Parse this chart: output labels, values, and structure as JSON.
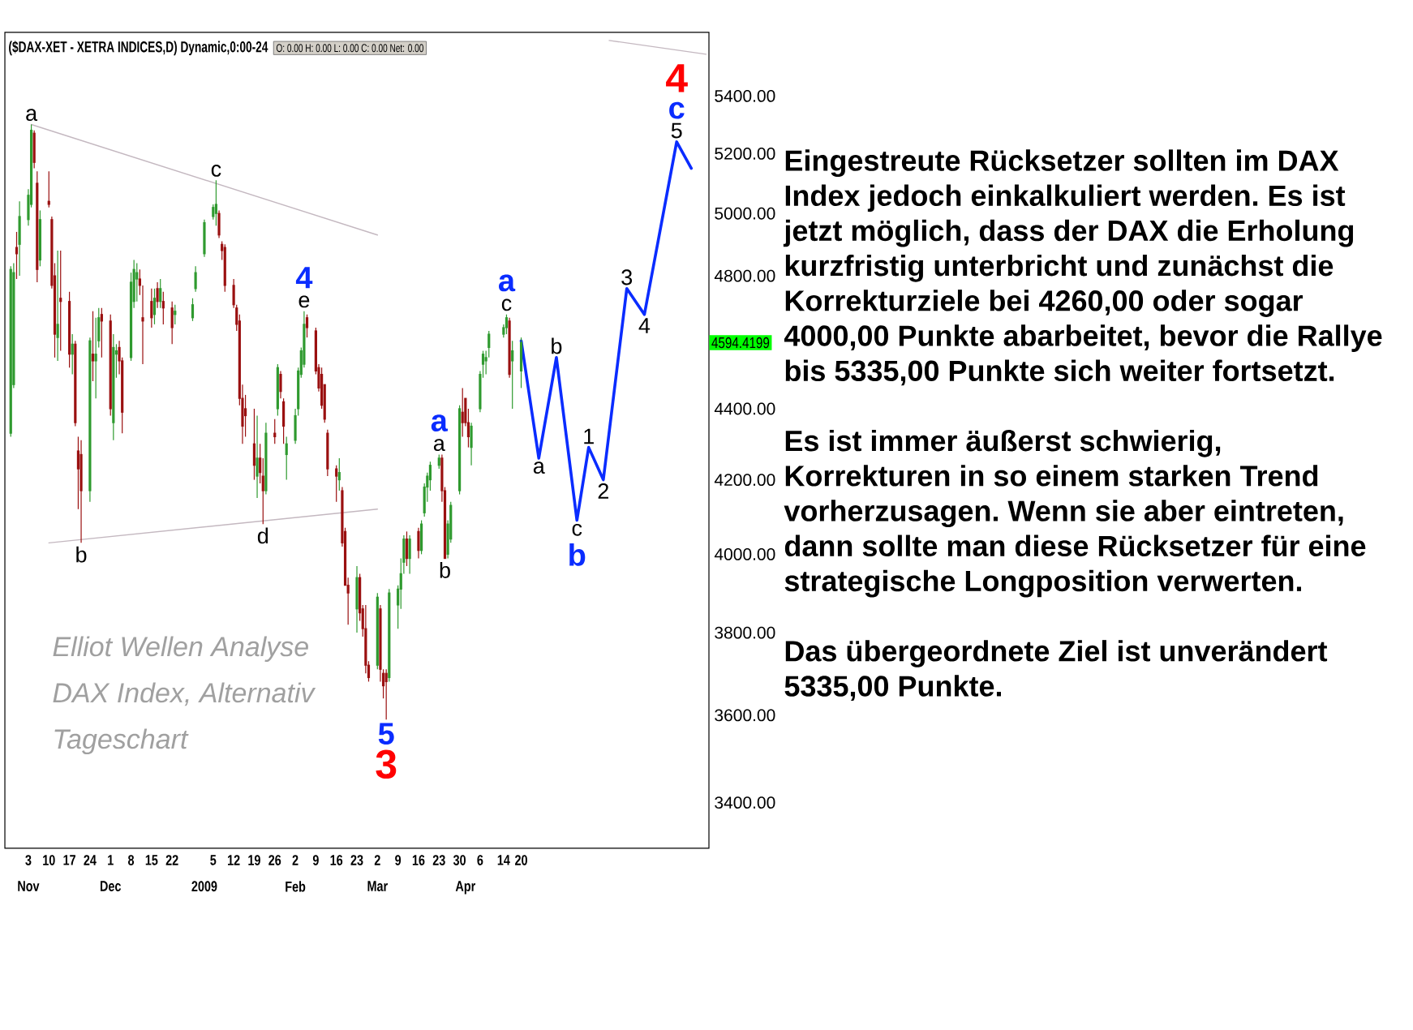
{
  "chart_data": {
    "type": "candlestick",
    "title": "($DAX-XET - XETRA INDICES,D) Dynamic,0:00-24",
    "subtitle": "O: 0.00 H: 0.00 L: 0.00 C: 0.00 Net: 0.00",
    "x": [
      "2008-10-28",
      "2008-10-29",
      "2008-10-30",
      "2008-10-31",
      "2008-11-03",
      "2008-11-04",
      "2008-11-05",
      "2008-11-06",
      "2008-11-07",
      "2008-11-10",
      "2008-11-11",
      "2008-11-12",
      "2008-11-13",
      "2008-11-14",
      "2008-11-17",
      "2008-11-18",
      "2008-11-19",
      "2008-11-20",
      "2008-11-21",
      "2008-11-24",
      "2008-11-25",
      "2008-11-26",
      "2008-11-27",
      "2008-11-28",
      "2008-12-01",
      "2008-12-02",
      "2008-12-03",
      "2008-12-04",
      "2008-12-05",
      "2008-12-08",
      "2008-12-09",
      "2008-12-10",
      "2008-12-11",
      "2008-12-12",
      "2008-12-15",
      "2008-12-16",
      "2008-12-17",
      "2008-12-18",
      "2008-12-19",
      "2008-12-22",
      "2008-12-23",
      "2008-12-29",
      "2008-12-30",
      "2009-01-02",
      "2009-01-05",
      "2009-01-06",
      "2009-01-07",
      "2009-01-08",
      "2009-01-09",
      "2009-01-12",
      "2009-01-13",
      "2009-01-14",
      "2009-01-15",
      "2009-01-16",
      "2009-01-19",
      "2009-01-20",
      "2009-01-21",
      "2009-01-22",
      "2009-01-23",
      "2009-01-26",
      "2009-01-27",
      "2009-01-28",
      "2009-01-29",
      "2009-01-30",
      "2009-02-02",
      "2009-02-03",
      "2009-02-04",
      "2009-02-05",
      "2009-02-06",
      "2009-02-09",
      "2009-02-10",
      "2009-02-11",
      "2009-02-12",
      "2009-02-13",
      "2009-02-16",
      "2009-02-17",
      "2009-02-18",
      "2009-02-19",
      "2009-02-20",
      "2009-02-23",
      "2009-02-24",
      "2009-02-25",
      "2009-02-26",
      "2009-02-27",
      "2009-03-02",
      "2009-03-03",
      "2009-03-04",
      "2009-03-05",
      "2009-03-06",
      "2009-03-09",
      "2009-03-10",
      "2009-03-11",
      "2009-03-12",
      "2009-03-13",
      "2009-03-16",
      "2009-03-17",
      "2009-03-18",
      "2009-03-19",
      "2009-03-20",
      "2009-03-23",
      "2009-03-24",
      "2009-03-25",
      "2009-03-26",
      "2009-03-27",
      "2009-03-30",
      "2009-03-31",
      "2009-04-01",
      "2009-04-02",
      "2009-04-03",
      "2009-04-06",
      "2009-04-07",
      "2009-04-08",
      "2009-04-09",
      "2009-04-14",
      "2009-04-15",
      "2009-04-16",
      "2009-04-17",
      "2009-04-20"
    ],
    "ohlc": [
      [
        4330,
        4830,
        4320,
        4820
      ],
      [
        4470,
        4840,
        4460,
        4810
      ],
      [
        4890,
        4940,
        4790,
        4870
      ],
      [
        4900,
        5040,
        4800,
        4990
      ],
      [
        4980,
        5080,
        4960,
        5060
      ],
      [
        5030,
        5300,
        5020,
        5280
      ],
      [
        5270,
        5280,
        5150,
        5170
      ],
      [
        5100,
        5140,
        4780,
        4820
      ],
      [
        4850,
        5010,
        4830,
        4980
      ],
      [
        5040,
        5140,
        5020,
        5030
      ],
      [
        4980,
        4990,
        4760,
        4770
      ],
      [
        4800,
        4840,
        4550,
        4620
      ],
      [
        4610,
        4880,
        4540,
        4650
      ],
      [
        4730,
        4880,
        4570,
        4720
      ],
      [
        4720,
        4750,
        4520,
        4560
      ],
      [
        4560,
        4620,
        4500,
        4590
      ],
      [
        4590,
        4600,
        4350,
        4360
      ],
      [
        4280,
        4320,
        4120,
        4230
      ],
      [
        4270,
        4310,
        4030,
        4170
      ],
      [
        4170,
        4610,
        4140,
        4600
      ],
      [
        4560,
        4690,
        4480,
        4540
      ],
      [
        4540,
        4670,
        4430,
        4560
      ],
      [
        4600,
        4700,
        4580,
        4670
      ],
      [
        4680,
        4700,
        4550,
        4660
      ],
      [
        4660,
        4680,
        4380,
        4400
      ],
      [
        4360,
        4620,
        4310,
        4580
      ],
      [
        4560,
        4590,
        4490,
        4570
      ],
      [
        4580,
        4600,
        4500,
        4540
      ],
      [
        4540,
        4550,
        4330,
        4390
      ],
      [
        4550,
        4810,
        4540,
        4780
      ],
      [
        4720,
        4850,
        4700,
        4820
      ],
      [
        4790,
        4840,
        4720,
        4810
      ],
      [
        4790,
        4820,
        4740,
        4770
      ],
      [
        4670,
        4770,
        4530,
        4660
      ],
      [
        4720,
        4760,
        4640,
        4670
      ],
      [
        4680,
        4760,
        4650,
        4730
      ],
      [
        4760,
        4780,
        4700,
        4720
      ],
      [
        4720,
        4790,
        4700,
        4760
      ],
      [
        4720,
        4750,
        4650,
        4700
      ],
      [
        4700,
        4720,
        4590,
        4640
      ],
      [
        4680,
        4710,
        4650,
        4690
      ],
      [
        4670,
        4730,
        4660,
        4710
      ],
      [
        4760,
        4830,
        4750,
        4810
      ],
      [
        4870,
        4980,
        4860,
        4970
      ],
      [
        4990,
        5030,
        4980,
        5020
      ],
      [
        5000,
        5110,
        4960,
        5030
      ],
      [
        5000,
        5010,
        4920,
        4930
      ],
      [
        4900,
        4910,
        4850,
        4880
      ],
      [
        4890,
        4900,
        4750,
        4770
      ],
      [
        4770,
        4790,
        4700,
        4710
      ],
      [
        4700,
        4710,
        4630,
        4650
      ],
      [
        4660,
        4680,
        4410,
        4430
      ],
      [
        4430,
        4470,
        4300,
        4350
      ],
      [
        4400,
        4440,
        4320,
        4380
      ],
      [
        4300,
        4400,
        4200,
        4240
      ],
      [
        4210,
        4380,
        4150,
        4260
      ],
      [
        4260,
        4300,
        4190,
        4220
      ],
      [
        4210,
        4260,
        4080,
        4170
      ],
      [
        4170,
        4360,
        4160,
        4330
      ],
      [
        4330,
        4370,
        4300,
        4320
      ],
      [
        4400,
        4530,
        4380,
        4520
      ],
      [
        4500,
        4510,
        4430,
        4450
      ],
      [
        4420,
        4430,
        4300,
        4350
      ],
      [
        4270,
        4320,
        4200,
        4300
      ],
      [
        4310,
        4400,
        4300,
        4380
      ],
      [
        4400,
        4520,
        4380,
        4510
      ],
      [
        4500,
        4580,
        4490,
        4570
      ],
      [
        4530,
        4690,
        4520,
        4650
      ],
      [
        4670,
        4680,
        4610,
        4640
      ],
      [
        4630,
        4640,
        4500,
        4510
      ],
      [
        4520,
        4530,
        4450,
        4460
      ],
      [
        4500,
        4520,
        4400,
        4410
      ],
      [
        4470,
        4470,
        4360,
        4370
      ],
      [
        4330,
        4340,
        4210,
        4230
      ],
      [
        4230,
        4240,
        4140,
        4210
      ],
      [
        4200,
        4260,
        4170,
        4220
      ],
      [
        4170,
        4180,
        4020,
        4030
      ],
      [
        4060,
        4070,
        3920,
        3920
      ],
      [
        3920,
        3940,
        3820,
        3900
      ],
      [
        3860,
        3970,
        3800,
        3940
      ],
      [
        3940,
        3950,
        3830,
        3850
      ],
      [
        3860,
        3870,
        3790,
        3810
      ],
      [
        3810,
        3870,
        3700,
        3720
      ],
      [
        3720,
        3730,
        3680,
        3690
      ],
      [
        3720,
        3900,
        3710,
        3890
      ],
      [
        3860,
        3870,
        3680,
        3710
      ],
      [
        3700,
        3710,
        3640,
        3670
      ],
      [
        3700,
        3710,
        3590,
        3680
      ],
      [
        3690,
        3910,
        3680,
        3900
      ],
      [
        3870,
        3920,
        3810,
        3910
      ],
      [
        3910,
        3990,
        3860,
        3950
      ],
      [
        3980,
        4050,
        3950,
        4040
      ],
      [
        4040,
        4060,
        3970,
        3990
      ],
      [
        3990,
        4050,
        3950,
        4040
      ],
      [
        4060,
        4070,
        3990,
        4010
      ],
      [
        4010,
        4090,
        4000,
        4080
      ],
      [
        4110,
        4190,
        4100,
        4180
      ],
      [
        4180,
        4220,
        4140,
        4210
      ],
      [
        4200,
        4250,
        4170,
        4240
      ],
      [
        4240,
        4270,
        4230,
        4260
      ],
      [
        4260,
        4270,
        4140,
        4170
      ],
      [
        4170,
        4180,
        3990,
        3990
      ],
      [
        4000,
        4090,
        3990,
        4080
      ],
      [
        4040,
        4140,
        4030,
        4130
      ],
      [
        4170,
        4410,
        4160,
        4400
      ],
      [
        4390,
        4460,
        4320,
        4360
      ],
      [
        4430,
        4430,
        4350,
        4360
      ],
      [
        4360,
        4400,
        4290,
        4320
      ],
      [
        4290,
        4360,
        4240,
        4350
      ],
      [
        4400,
        4510,
        4390,
        4500
      ],
      [
        4530,
        4570,
        4490,
        4560
      ],
      [
        4540,
        4570,
        4500,
        4550
      ],
      [
        4580,
        4630,
        4550,
        4620
      ],
      [
        4620,
        4650,
        4610,
        4640
      ],
      [
        4640,
        4680,
        4620,
        4670
      ],
      [
        4660,
        4670,
        4490,
        4500
      ],
      [
        4540,
        4600,
        4400,
        4570
      ],
      [
        4510,
        4610,
        4460,
        4594.4199
      ]
    ],
    "colors": [
      "#2f9a2f",
      "#2f9a2f",
      "#9a1010",
      "#2f9a2f",
      "#2f9a2f",
      "#2f9a2f",
      "#9a1010",
      "#9a1010",
      "#2f9a2f",
      "#9a1010",
      "#9a1010",
      "#9a1010",
      "#2f9a2f",
      "#9a1010",
      "#9a1010",
      "#2f9a2f",
      "#9a1010",
      "#9a1010",
      "#9a1010",
      "#2f9a2f",
      "#9a1010",
      "#2f9a2f",
      "#2f9a2f",
      "#9a1010",
      "#9a1010",
      "#2f9a2f",
      "#2f9a2f",
      "#9a1010",
      "#9a1010",
      "#2f9a2f",
      "#2f9a2f",
      "#2f9a2f",
      "#9a1010",
      "#9a1010",
      "#9a1010",
      "#2f9a2f",
      "#9a1010",
      "#2f9a2f",
      "#9a1010",
      "#9a1010",
      "#2f9a2f",
      "#2f9a2f",
      "#2f9a2f",
      "#2f9a2f",
      "#2f9a2f",
      "#2f9a2f",
      "#9a1010",
      "#9a1010",
      "#9a1010",
      "#9a1010",
      "#9a1010",
      "#9a1010",
      "#9a1010",
      "#9a1010",
      "#9a1010",
      "#2f9a2f",
      "#9a1010",
      "#9a1010",
      "#2f9a2f",
      "#9a1010",
      "#2f9a2f",
      "#9a1010",
      "#9a1010",
      "#2f9a2f",
      "#2f9a2f",
      "#2f9a2f",
      "#2f9a2f",
      "#2f9a2f",
      "#9a1010",
      "#9a1010",
      "#9a1010",
      "#9a1010",
      "#9a1010",
      "#9a1010",
      "#9a1010",
      "#2f9a2f",
      "#9a1010",
      "#9a1010",
      "#9a1010",
      "#2f9a2f",
      "#9a1010",
      "#9a1010",
      "#9a1010",
      "#9a1010",
      "#2f9a2f",
      "#9a1010",
      "#9a1010",
      "#9a1010",
      "#2f9a2f",
      "#2f9a2f",
      "#2f9a2f",
      "#2f9a2f",
      "#9a1010",
      "#2f9a2f",
      "#9a1010",
      "#2f9a2f",
      "#2f9a2f",
      "#2f9a2f",
      "#2f9a2f",
      "#2f9a2f",
      "#9a1010",
      "#9a1010",
      "#2f9a2f",
      "#2f9a2f",
      "#2f9a2f",
      "#9a1010",
      "#9a1010",
      "#9a1010",
      "#2f9a2f",
      "#2f9a2f",
      "#2f9a2f",
      "#2f9a2f",
      "#2f9a2f",
      "#2f9a2f",
      "#2f9a2f",
      "#9a1010",
      "#2f9a2f",
      "#2f9a2f"
    ],
    "series": [
      {
        "type": "line",
        "color": "#0a2cff",
        "x": [
          "2009-04-20",
          "2009-04-26",
          "2009-05-02",
          "2009-05-09",
          "2009-05-13",
          "2009-05-18",
          "2009-05-26",
          "2009-06-01",
          "2009-06-12",
          "2009-06-17"
        ],
        "values": [
          4600,
          4260,
          4550,
          4090,
          4290,
          4200,
          4760,
          4680,
          5240,
          5150
        ]
      },
      {
        "type": "line",
        "color": "#c4b8c0",
        "x": [
          "2008-11-04",
          "2009-03-02"
        ],
        "values": [
          5300,
          4930
        ]
      },
      {
        "type": "line",
        "color": "#c4b8c0",
        "x": [
          "2008-11-10",
          "2009-03-02"
        ],
        "values": [
          4030,
          4120
        ]
      },
      {
        "type": "line",
        "color": "#c4b8c0",
        "x": [
          "2009-05-20",
          "2009-06-22"
        ],
        "values": [
          5600,
          5550
        ]
      }
    ],
    "xlim": [
      "2008-10-26",
      "2009-06-23"
    ],
    "xticks": [
      {
        "value": "2008-11-03",
        "label": "3"
      },
      {
        "value": "2008-11-10",
        "label": "10"
      },
      {
        "value": "2008-11-17",
        "label": "17"
      },
      {
        "value": "2008-11-24",
        "label": "24"
      },
      {
        "value": "2008-12-01",
        "label": "1"
      },
      {
        "value": "2008-12-08",
        "label": "8"
      },
      {
        "value": "2008-12-15",
        "label": "15"
      },
      {
        "value": "2008-12-22",
        "label": "22"
      },
      {
        "value": "2009-01-05",
        "label": "5"
      },
      {
        "value": "2009-01-12",
        "label": "12"
      },
      {
        "value": "2009-01-19",
        "label": "19"
      },
      {
        "value": "2009-01-26",
        "label": "26"
      },
      {
        "value": "2009-02-02",
        "label": "2"
      },
      {
        "value": "2009-02-09",
        "label": "9"
      },
      {
        "value": "2009-02-16",
        "label": "16"
      },
      {
        "value": "2009-02-23",
        "label": "23"
      },
      {
        "value": "2009-03-02",
        "label": "2"
      },
      {
        "value": "2009-03-09",
        "label": "9"
      },
      {
        "value": "2009-03-16",
        "label": "16"
      },
      {
        "value": "2009-03-23",
        "label": "23"
      },
      {
        "value": "2009-03-30",
        "label": "30"
      },
      {
        "value": "2009-04-06",
        "label": "6"
      },
      {
        "value": "2009-04-14",
        "label": "14"
      },
      {
        "value": "2009-04-20",
        "label": "20"
      }
    ],
    "x2lim": [
      "2008-10-26",
      "2009-06-23"
    ],
    "x2ticks": [
      {
        "value": "2008-11-03",
        "label": "Nov"
      },
      {
        "value": "2008-12-01",
        "label": "Dec"
      },
      {
        "value": "2009-01-02",
        "label": "2009"
      },
      {
        "value": "2009-02-02",
        "label": "Feb"
      },
      {
        "value": "2009-03-02",
        "label": "Mar"
      },
      {
        "value": "2009-04-01",
        "label": "Apr"
      }
    ],
    "ylim": [
      3300,
      5630
    ],
    "yticks": [
      {
        "value": 3400,
        "label": "3400.00"
      },
      {
        "value": 3600,
        "label": "3600.00"
      },
      {
        "value": 3800,
        "label": "3800.00"
      },
      {
        "value": 4000,
        "label": "4000.00"
      },
      {
        "value": 4200,
        "label": "4200.00"
      },
      {
        "value": 4400,
        "label": "4400.00"
      },
      {
        "value": 4800,
        "label": "4800.00"
      },
      {
        "value": 5000,
        "label": "5000.00"
      },
      {
        "value": 5200,
        "label": "5200.00"
      },
      {
        "value": 5400,
        "label": "5400.00"
      }
    ],
    "log": true,
    "annotations": [
      {
        "text": "a",
        "x": "2008-11-04",
        "y": 5300
      },
      {
        "text": "b",
        "x": "2008-11-21",
        "y": 4030
      },
      {
        "text": "c",
        "x": "2009-01-06",
        "y": 5110
      },
      {
        "text": "d",
        "x": "2009-01-22",
        "y": 4080
      },
      {
        "text": "e",
        "x": "2009-02-05",
        "y": 4690
      },
      {
        "text": "4",
        "x": "2009-02-05",
        "y": 4690
      },
      {
        "text": "5",
        "x": "2009-03-05",
        "y": 3590
      },
      {
        "text": "3",
        "x": "2009-03-05",
        "y": 3590
      },
      {
        "text": "a",
        "x": "2009-03-23",
        "y": 4270
      },
      {
        "text": "a",
        "x": "2009-03-23",
        "y": 4270
      },
      {
        "text": "b",
        "x": "2009-03-25",
        "y": 3990
      },
      {
        "text": "c",
        "x": "2009-04-15",
        "y": 4680
      },
      {
        "text": "a",
        "x": "2009-04-15",
        "y": 4680
      },
      {
        "text": "a",
        "x": "2009-04-26",
        "y": 4260
      },
      {
        "text": "b",
        "x": "2009-05-02",
        "y": 4550
      },
      {
        "text": "c",
        "x": "2009-05-09",
        "y": 4090
      },
      {
        "text": "b",
        "x": "2009-05-09",
        "y": 4090
      },
      {
        "text": "1",
        "x": "2009-05-13",
        "y": 4290
      },
      {
        "text": "2",
        "x": "2009-05-18",
        "y": 4200
      },
      {
        "text": "3",
        "x": "2009-05-26",
        "y": 4760
      },
      {
        "text": "4",
        "x": "2009-06-01",
        "y": 4680
      },
      {
        "text": "5",
        "x": "2009-06-12",
        "y": 5240
      },
      {
        "text": "c",
        "x": "2009-06-12",
        "y": 5240
      },
      {
        "text": "4",
        "x": "2009-06-12",
        "y": 5240
      },
      "4594.4199",
      "Elliot Wellen Analyse DAX Index, Alternativ Tageschart",
      "Eingestreute Rücksetzer sollten im DAX Index jedoch einkalkuliert werden. Es ist jetzt möglich, dass der DAX die Erholung kurzfristig unterbricht und zunächst die Korrekturziele bei 4260,00 oder sogar 4000,00 Punkte abarbeitet, bevor die Rallye bis 5335,00 Punkte sich weiter fortsetzt.",
      "Es ist immer äußerst schwierig, Korrekturen in so einem starken Trend vorherzusagen. Wenn sie aber eintreten, dann sollte man diese Rücksetzer für eine strategische Longposition verwerten.",
      "Das übergeordnete Ziel ist unverändert 5335,00 Punkte."
    ]
  }
}
